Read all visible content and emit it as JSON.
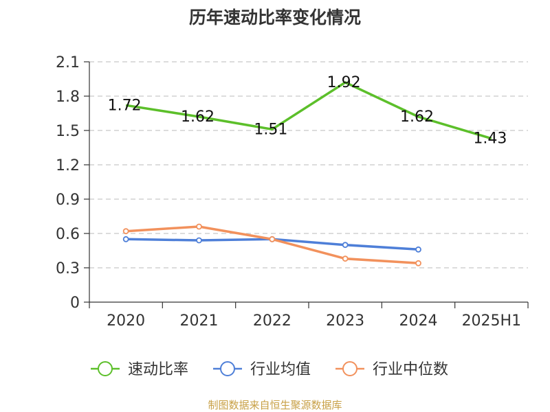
{
  "title": "历年速动比率变化情况",
  "source": "制图数据来自恒生聚源数据库",
  "chart_data": {
    "type": "line",
    "categories": [
      "2020",
      "2021",
      "2022",
      "2023",
      "2024",
      "2025H1"
    ],
    "ylim": [
      0,
      2.1
    ],
    "yticks": [
      "0",
      "0.3",
      "0.6",
      "0.9",
      "1.2",
      "1.5",
      "1.8",
      "2.1"
    ],
    "grid": true,
    "legend_position": "bottom",
    "series": [
      {
        "name": "速动比率",
        "color": "#5cbf2a",
        "values": [
          1.72,
          1.62,
          1.51,
          1.92,
          1.62,
          1.43
        ],
        "labels": [
          "1.72",
          "1.62",
          "1.51",
          "1.92",
          "1.62",
          "1.43"
        ],
        "show_labels": true,
        "markers": false
      },
      {
        "name": "行业均值",
        "color": "#4e7fd8",
        "values": [
          0.55,
          0.54,
          0.55,
          0.5,
          0.46,
          null
        ],
        "show_labels": false,
        "markers": true
      },
      {
        "name": "行业中位数",
        "color": "#f2915c",
        "values": [
          0.62,
          0.66,
          0.55,
          0.38,
          0.34,
          null
        ],
        "show_labels": false,
        "markers": true
      }
    ]
  }
}
